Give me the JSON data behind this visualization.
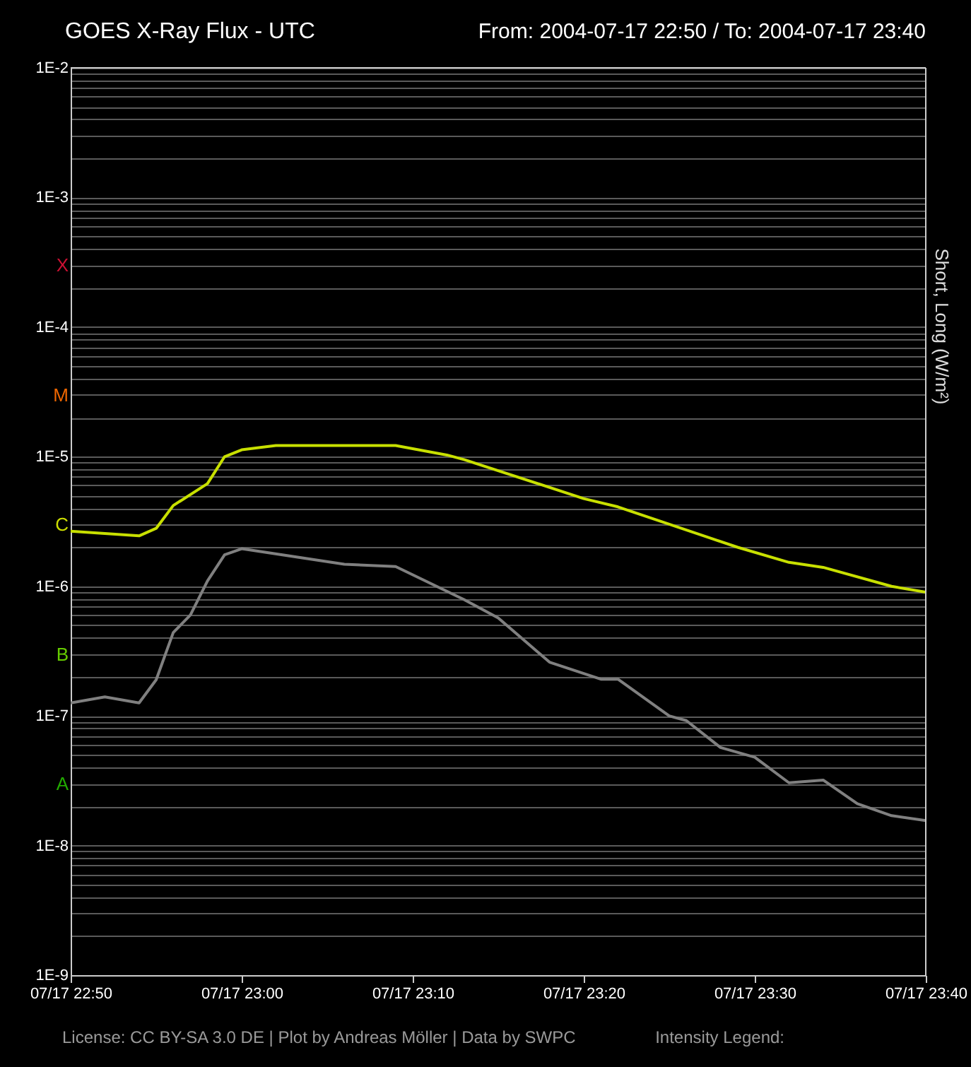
{
  "chart_data": {
    "type": "line",
    "title": "GOES X-Ray Flux - UTC",
    "subtitle": "From: 2004-07-17 22:50  /  To: 2004-07-17 23:40",
    "ylabel": "Short, Long (W/m²)",
    "log": "y",
    "grid": "y",
    "legend": false,
    "line_style": "solid",
    "marker": "none",
    "xlim": [
      "2004-07-17T22:50",
      "2004-07-17T23:40"
    ],
    "xticks": [
      {
        "value": "2004-07-17T22:50",
        "label": "07/17 22:50"
      },
      {
        "value": "2004-07-17T23:00",
        "label": "07/17 23:00"
      },
      {
        "value": "2004-07-17T23:10",
        "label": "07/17 23:10"
      },
      {
        "value": "2004-07-17T23:20",
        "label": "07/17 23:20"
      },
      {
        "value": "2004-07-17T23:30",
        "label": "07/17 23:30"
      },
      {
        "value": "2004-07-17T23:40",
        "label": "07/17 23:40"
      }
    ],
    "ylim": [
      1e-09,
      0.01
    ],
    "yticks": [
      {
        "value": 1e-09,
        "label": "1E-9"
      },
      {
        "value": 2e-09,
        "label": null
      },
      {
        "value": 3e-09,
        "label": null
      },
      {
        "value": 4e-09,
        "label": null
      },
      {
        "value": 5e-09,
        "label": null
      },
      {
        "value": 6e-09,
        "label": null
      },
      {
        "value": 7e-09,
        "label": null
      },
      {
        "value": 8e-09,
        "label": null
      },
      {
        "value": 9e-09,
        "label": null
      },
      {
        "value": 1e-08,
        "label": "1E-8"
      },
      {
        "value": 2e-08,
        "label": null
      },
      {
        "value": 3e-08,
        "label": "A"
      },
      {
        "value": 4e-08,
        "label": null
      },
      {
        "value": 5e-08,
        "label": null
      },
      {
        "value": 6e-08,
        "label": null
      },
      {
        "value": 7e-08,
        "label": null
      },
      {
        "value": 8e-08,
        "label": null
      },
      {
        "value": 9e-08,
        "label": null
      },
      {
        "value": 1e-07,
        "label": "1E-7"
      },
      {
        "value": 2e-07,
        "label": null
      },
      {
        "value": 3e-07,
        "label": "B"
      },
      {
        "value": 4e-07,
        "label": null
      },
      {
        "value": 5e-07,
        "label": null
      },
      {
        "value": 6e-07,
        "label": null
      },
      {
        "value": 7e-07,
        "label": null
      },
      {
        "value": 8e-07,
        "label": null
      },
      {
        "value": 9e-07,
        "label": null
      },
      {
        "value": 1e-06,
        "label": "1E-6"
      },
      {
        "value": 2e-06,
        "label": null
      },
      {
        "value": 3e-06,
        "label": "C"
      },
      {
        "value": 4e-06,
        "label": null
      },
      {
        "value": 5e-06,
        "label": null
      },
      {
        "value": 6e-06,
        "label": null
      },
      {
        "value": 7e-06,
        "label": null
      },
      {
        "value": 8e-06,
        "label": null
      },
      {
        "value": 9e-06,
        "label": null
      },
      {
        "value": 1e-05,
        "label": "1E-5"
      },
      {
        "value": 2e-05,
        "label": null
      },
      {
        "value": 3e-05,
        "label": "M"
      },
      {
        "value": 4e-05,
        "label": null
      },
      {
        "value": 5e-05,
        "label": null
      },
      {
        "value": 6e-05,
        "label": null
      },
      {
        "value": 7e-05,
        "label": null
      },
      {
        "value": 8e-05,
        "label": null
      },
      {
        "value": 9e-05,
        "label": null
      },
      {
        "value": 0.0001,
        "label": "1E-4"
      },
      {
        "value": 0.0002,
        "label": null
      },
      {
        "value": 0.0003,
        "label": "X"
      },
      {
        "value": 0.0004,
        "label": null
      },
      {
        "value": 0.0005,
        "label": null
      },
      {
        "value": 0.0006,
        "label": null
      },
      {
        "value": 0.0007,
        "label": null
      },
      {
        "value": 0.0008,
        "label": null
      },
      {
        "value": 0.0009,
        "label": null
      },
      {
        "value": 0.001,
        "label": "1E-3"
      },
      {
        "value": 0.002,
        "label": null
      },
      {
        "value": 0.003,
        "label": null
      },
      {
        "value": 0.004,
        "label": null
      },
      {
        "value": 0.005,
        "label": null
      },
      {
        "value": 0.006,
        "label": null
      },
      {
        "value": 0.007,
        "label": null
      },
      {
        "value": 0.008,
        "label": null
      },
      {
        "value": 0.009,
        "label": null
      },
      {
        "value": 0.01,
        "label": "1E-2"
      }
    ],
    "series": [
      {
        "color": "#808080",
        "x": [
          "2004-07-17T22:50",
          "2004-07-17T22:52",
          "2004-07-17T22:54",
          "2004-07-17T22:55",
          "2004-07-17T22:56",
          "2004-07-17T22:57",
          "2004-07-17T22:58",
          "2004-07-17T22:59",
          "2004-07-17T23:00",
          "2004-07-17T23:06",
          "2004-07-17T23:09",
          "2004-07-17T23:13",
          "2004-07-17T23:15",
          "2004-07-17T23:18",
          "2004-07-17T23:21",
          "2004-07-17T23:22",
          "2004-07-17T23:25",
          "2004-07-17T23:26",
          "2004-07-17T23:28",
          "2004-07-17T23:30",
          "2004-07-17T23:32",
          "2004-07-17T23:34",
          "2004-07-17T23:36",
          "2004-07-17T23:38",
          "2004-07-17T23:40"
        ],
        "values": [
          1.26e-07,
          1.4e-07,
          1.26e-07,
          1.9e-07,
          4.4e-07,
          6e-07,
          1.1e-06,
          1.75e-06,
          1.95e-06,
          1.48e-06,
          1.42e-06,
          7.9e-07,
          5.7e-07,
          2.6e-07,
          1.92e-07,
          1.92e-07,
          1e-07,
          9.2e-08,
          5.7e-08,
          4.8e-08,
          3.05e-08,
          3.2e-08,
          2.1e-08,
          1.7e-08,
          1.56e-08
        ]
      },
      {
        "color": "#c8e000",
        "x": [
          "2004-07-17T22:50",
          "2004-07-17T22:54",
          "2004-07-17T22:55",
          "2004-07-17T22:56",
          "2004-07-17T22:58",
          "2004-07-17T22:59",
          "2004-07-17T23:00",
          "2004-07-17T23:02",
          "2004-07-17T23:09",
          "2004-07-17T23:12",
          "2004-07-17T23:13",
          "2004-07-17T23:20",
          "2004-07-17T23:22",
          "2004-07-17T23:29",
          "2004-07-17T23:32",
          "2004-07-17T23:34",
          "2004-07-17T23:38",
          "2004-07-17T23:40"
        ],
        "values": [
          2.66e-06,
          2.45e-06,
          2.8e-06,
          4.2e-06,
          6.2e-06,
          1e-05,
          1.13e-05,
          1.22e-05,
          1.22e-05,
          1.03e-05,
          9.5e-06,
          4.75e-06,
          4.1e-06,
          2e-06,
          1.53e-06,
          1.4e-06,
          1e-06,
          9e-07
        ]
      }
    ],
    "annotations": [
      "License: CC BY-SA 3.0 DE | Plot by Andreas Möller | Data by SWPC",
      "Intensity Legend:"
    ]
  }
}
